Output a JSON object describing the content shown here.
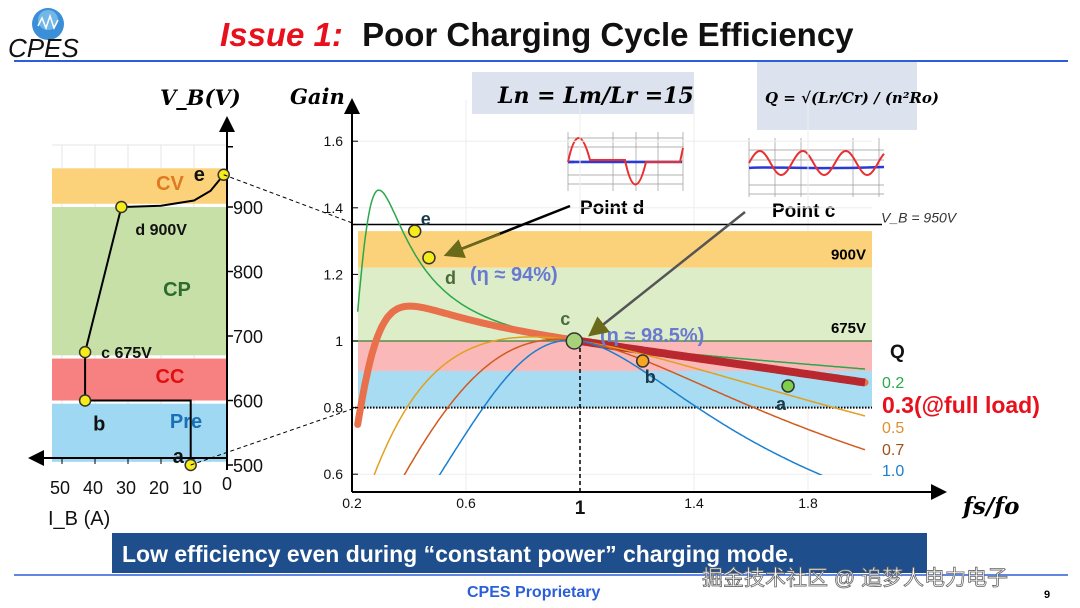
{
  "header": {
    "logo_text": "CPES",
    "title_prefix": "Issue 1:",
    "title_main": "Poor Charging Cycle Efficiency"
  },
  "formulas": {
    "ln": "L",
    "ln_text": "Ln = Lm/Lr =15",
    "q_text": "Q = √(Lr/Cr) / (n²Ro)"
  },
  "footer": {
    "banner": "Low efficiency  even during “constant power” charging mode.",
    "proprietary": "CPES Proprietary",
    "watermark": "掘金技术社区 @ 追梦人电力电子",
    "page_number": "9"
  },
  "colors": {
    "title_red": "#e8101c",
    "band_cv": "#fbd27a",
    "band_cp": "#c6e0a8",
    "band_cc": "#f78080",
    "band_pre": "#9ed8f2",
    "marker_yellow": "#f5ec1a",
    "banner_bg": "#1f4e8c"
  },
  "chart_data": [
    {
      "type": "line",
      "title": "",
      "xlabel": "I_B (A)",
      "ylabel": "V_B(V)",
      "x_direction": "reversed",
      "xlim": [
        0,
        52
      ],
      "ylim": [
        500,
        960
      ],
      "xticks": [
        "50",
        "40",
        "30",
        "20",
        "10",
        "0"
      ],
      "xtick_values": [
        50,
        40,
        30,
        20,
        10,
        0
      ],
      "yticks": [
        "500",
        "600",
        "700",
        "800",
        "900"
      ],
      "ytick_values": [
        500,
        600,
        700,
        800,
        900
      ],
      "bands": [
        {
          "label": "CV",
          "from": 905,
          "to": 960,
          "color": "#fbd27a",
          "text_color": "#e07a20"
        },
        {
          "label": "CP",
          "from": 670,
          "to": 900,
          "color": "#c6e0a8",
          "text_color": "#2e6b2e"
        },
        {
          "label": "CC",
          "from": 600,
          "to": 665,
          "color": "#f78080",
          "text_color": "#e01010"
        },
        {
          "label": "Pre",
          "from": 505,
          "to": 595,
          "color": "#9ed8f2",
          "text_color": "#1a6fb5"
        }
      ],
      "trajectory": {
        "x": [
          11,
          11,
          43,
          43,
          32,
          20,
          10,
          5,
          1
        ],
        "y": [
          500,
          600,
          600,
          675,
          900,
          902,
          910,
          925,
          950
        ]
      },
      "points": [
        {
          "label": "a",
          "x": 11,
          "y": 500
        },
        {
          "label": "b",
          "x": 43,
          "y": 600
        },
        {
          "label": "c 675V",
          "x": 43,
          "y": 675
        },
        {
          "label": "d 900V",
          "x": 32,
          "y": 900
        },
        {
          "label": "e",
          "x": 1,
          "y": 950
        }
      ]
    },
    {
      "type": "line",
      "title": "",
      "xlabel": "fs/fo",
      "ylabel": "Gain",
      "xlim": [
        0.2,
        2.05
      ],
      "ylim": [
        0.55,
        1.7
      ],
      "xticks": [
        "0.2",
        "0.6",
        "1",
        "1.4",
        "1.8"
      ],
      "xtick_values": [
        0.2,
        0.6,
        1.0,
        1.4,
        1.8
      ],
      "yticks": [
        "0.6",
        "0.8",
        "1",
        "1.2",
        "1.4",
        "1.6"
      ],
      "ytick_values": [
        0.6,
        0.8,
        1.0,
        1.2,
        1.4,
        1.6
      ],
      "Ln": 15,
      "legend_title": "Q",
      "series": [
        {
          "name": "0.2",
          "Q": 0.2,
          "color": "#2aa84a"
        },
        {
          "name": "0.3(@full load)",
          "Q": 0.3,
          "color": "#e01010",
          "highlight": true
        },
        {
          "name": "0.5",
          "Q": 0.5,
          "color": "#e0a020"
        },
        {
          "name": "0.7",
          "Q": 0.7,
          "color": "#d05a20"
        },
        {
          "name": "1.0",
          "Q": 1.0,
          "color": "#1a7fd0"
        }
      ],
      "bands": [
        {
          "label": "900V",
          "from": 1.22,
          "to": 1.33,
          "color": "#fbd27a"
        },
        {
          "label": "675V",
          "from": 1.0,
          "to": 1.22,
          "color": "#dcedc8"
        },
        {
          "label": "",
          "from": 0.91,
          "to": 1.0,
          "color": "#fbb8b8"
        },
        {
          "label": "",
          "from": 0.8,
          "to": 0.91,
          "color": "#a8dcf2"
        }
      ],
      "hlines": [
        {
          "label": "V_B = 950V",
          "y": 1.35
        }
      ],
      "points": [
        {
          "label": "e",
          "x": 0.42,
          "y": 1.33,
          "color": "#f5ec1a"
        },
        {
          "label": "d",
          "x": 0.47,
          "y": 1.25,
          "color": "#f5ec1a"
        },
        {
          "label": "c",
          "x": 0.98,
          "y": 1.0,
          "color": "#a8d27a"
        },
        {
          "label": "b",
          "x": 1.22,
          "y": 0.94,
          "color": "#f5a623"
        },
        {
          "label": "a",
          "x": 1.73,
          "y": 0.865,
          "color": "#7ed04a"
        }
      ],
      "annotations": [
        {
          "text": "(η ≈ 94%)",
          "x": 0.5,
          "y": 1.2
        },
        {
          "text": "(η ≈ 98.5%)",
          "x": 1.02,
          "y": 1.02
        },
        {
          "text": "Point d"
        },
        {
          "text": "Point c"
        }
      ]
    }
  ]
}
